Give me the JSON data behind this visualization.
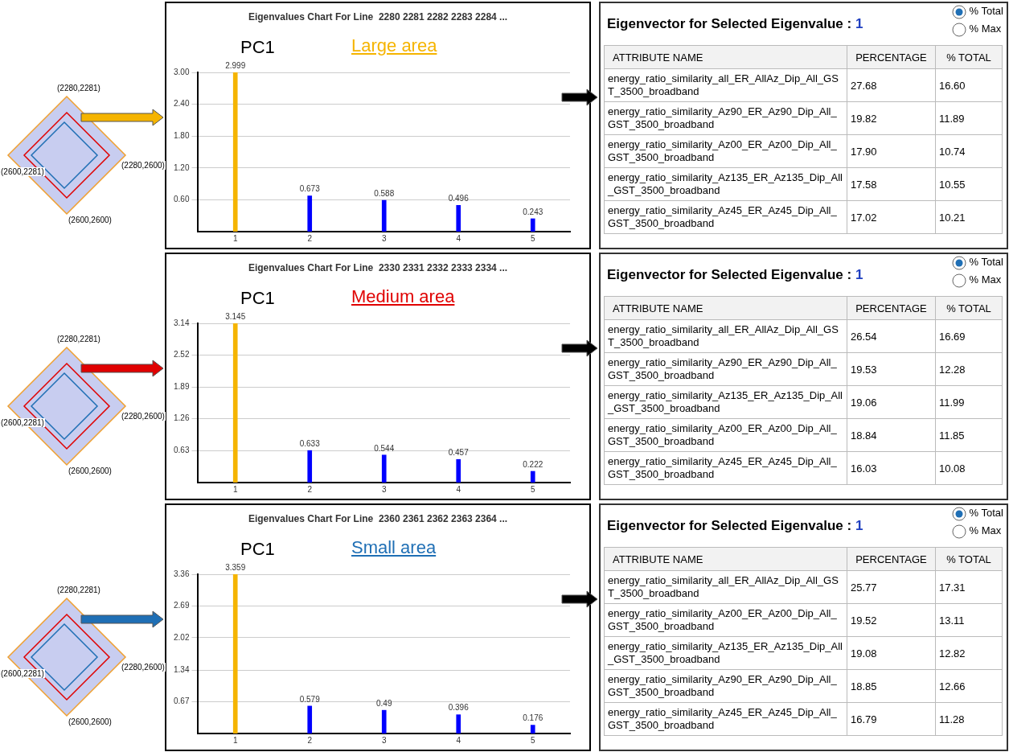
{
  "chart_data": [
    {
      "type": "other",
      "color": "#f5b400",
      "annotations": [
        "(2280,2281)",
        "(2280,2600)",
        "(2600,2600)",
        "(2600,2281)"
      ]
    },
    {
      "type": "bar",
      "title": "Eigenvalues Chart For Line  2280 2281 2282 2283 2284 ...",
      "annotations": [
        "PC1",
        "Large area"
      ],
      "categories": [
        "1",
        "2",
        "3",
        "4",
        "5"
      ],
      "values": [
        2.999,
        0.673,
        0.588,
        0.496,
        0.243
      ],
      "colors": [
        "#f5b400",
        "#0000ff",
        "#0000ff",
        "#0000ff",
        "#0000ff"
      ],
      "ylim": [
        0,
        3
      ],
      "yticks": [
        {
          "value": 0.6,
          "label": "0.60"
        },
        {
          "value": 1.2,
          "label": "1.20"
        },
        {
          "value": 1.8,
          "label": "1.80"
        },
        {
          "value": 2.4,
          "label": "2.40"
        },
        {
          "value": 3,
          "label": "3.00"
        }
      ],
      "grid": "y",
      "data_labels": true
    },
    {
      "type": "other",
      "title": "Eigenvector for Selected Eigenvalue :",
      "subtitle": "1",
      "xlabel": "ATTRIBUTE NAME",
      "annotations": [
        "% Total",
        "% Max"
      ],
      "categories": [
        "energy_ratio_similarity_all_ER_AllAz_Dip_All_GST_3500_broadband",
        "energy_ratio_similarity_Az90_ER_Az90_Dip_All_GST_3500_broadband",
        "energy_ratio_similarity_Az00_ER_Az00_Dip_All_GST_3500_broadband",
        "energy_ratio_similarity_Az135_ER_Az135_Dip_All_GST_3500_broadband",
        "energy_ratio_similarity_Az45_ER_Az45_Dip_All_GST_3500_broadband"
      ],
      "data_labels": true,
      "series": [
        {
          "name": "PERCENTAGE",
          "values": [
            27.68,
            19.82,
            17.9,
            17.58,
            17.02
          ],
          "value_labels": [
            "27.68",
            "19.82",
            "17.90",
            "17.58",
            "17.02"
          ]
        },
        {
          "name": "% TOTAL",
          "values": [
            16.6,
            11.89,
            10.74,
            10.55,
            10.21
          ],
          "value_labels": [
            "16.60",
            "11.89",
            "10.74",
            "10.55",
            "10.21"
          ]
        }
      ]
    },
    {
      "type": "other",
      "color": "#e00000",
      "annotations": [
        "(2280,2281)",
        "(2280,2600)",
        "(2600,2600)",
        "(2600,2281)"
      ]
    },
    {
      "type": "bar",
      "title": "Eigenvalues Chart For Line  2330 2331 2332 2333 2334 ...",
      "annotations": [
        "PC1",
        "Medium area"
      ],
      "categories": [
        "1",
        "2",
        "3",
        "4",
        "5"
      ],
      "values": [
        3.145,
        0.633,
        0.544,
        0.457,
        0.222
      ],
      "colors": [
        "#f5b400",
        "#0000ff",
        "#0000ff",
        "#0000ff",
        "#0000ff"
      ],
      "ylim": [
        0,
        3.145
      ],
      "yticks": [
        0.63,
        1.26,
        1.89,
        2.52,
        3.14
      ],
      "grid": "y",
      "data_labels": true
    },
    {
      "type": "other",
      "title": "Eigenvector for Selected Eigenvalue :",
      "subtitle": "1",
      "xlabel": "ATTRIBUTE NAME",
      "annotations": [
        "% Total",
        "% Max"
      ],
      "categories": [
        "energy_ratio_similarity_all_ER_AllAz_Dip_All_GST_3500_broadband",
        "energy_ratio_similarity_Az90_ER_Az90_Dip_All_GST_3500_broadband",
        "energy_ratio_similarity_Az135_ER_Az135_Dip_All_GST_3500_broadband",
        "energy_ratio_similarity_Az00_ER_Az00_Dip_All_GST_3500_broadband",
        "energy_ratio_similarity_Az45_ER_Az45_Dip_All_GST_3500_broadband"
      ],
      "data_labels": true,
      "series": [
        {
          "name": "PERCENTAGE",
          "values": [
            26.54,
            19.53,
            19.06,
            18.84,
            16.03
          ]
        },
        {
          "name": "% TOTAL",
          "values": [
            16.69,
            12.28,
            11.99,
            11.85,
            10.08
          ]
        }
      ]
    },
    {
      "type": "other",
      "color": "#1f6fb5",
      "annotations": [
        "(2280,2281)",
        "(2280,2600)",
        "(2600,2600)",
        "(2600,2281)"
      ]
    },
    {
      "type": "bar",
      "title": "Eigenvalues Chart For Line  2360 2361 2362 2363 2364 ...",
      "annotations": [
        "PC1",
        "Small area"
      ],
      "categories": [
        "1",
        "2",
        "3",
        "4",
        "5"
      ],
      "values": [
        3.359,
        0.579,
        0.49,
        0.396,
        0.176
      ],
      "colors": [
        "#f5b400",
        "#0000ff",
        "#0000ff",
        "#0000ff",
        "#0000ff"
      ],
      "ylim": [
        0,
        3.36
      ],
      "yticks": [
        0.67,
        1.34,
        2.02,
        2.69,
        3.36
      ],
      "grid": "y",
      "data_labels": true
    },
    {
      "type": "other",
      "title": "Eigenvector for Selected Eigenvalue :",
      "subtitle": "1",
      "xlabel": "ATTRIBUTE NAME",
      "annotations": [
        "% Total",
        "% Max"
      ],
      "categories": [
        "energy_ratio_similarity_all_ER_AllAz_Dip_All_GST_3500_broadband",
        "energy_ratio_similarity_Az00_ER_Az00_Dip_All_GST_3500_broadband",
        "energy_ratio_similarity_Az135_ER_Az135_Dip_All_GST_3500_broadband",
        "energy_ratio_similarity_Az90_ER_Az90_Dip_All_GST_3500_broadband",
        "energy_ratio_similarity_Az45_ER_Az45_Dip_All_GST_3500_broadband"
      ],
      "data_labels": true,
      "series": [
        {
          "name": "PERCENTAGE",
          "values": [
            25.77,
            19.52,
            19.08,
            18.85,
            16.79
          ]
        },
        {
          "name": "% TOTAL",
          "values": [
            17.31,
            13.11,
            12.82,
            12.66,
            11.28
          ]
        }
      ]
    }
  ]
}
